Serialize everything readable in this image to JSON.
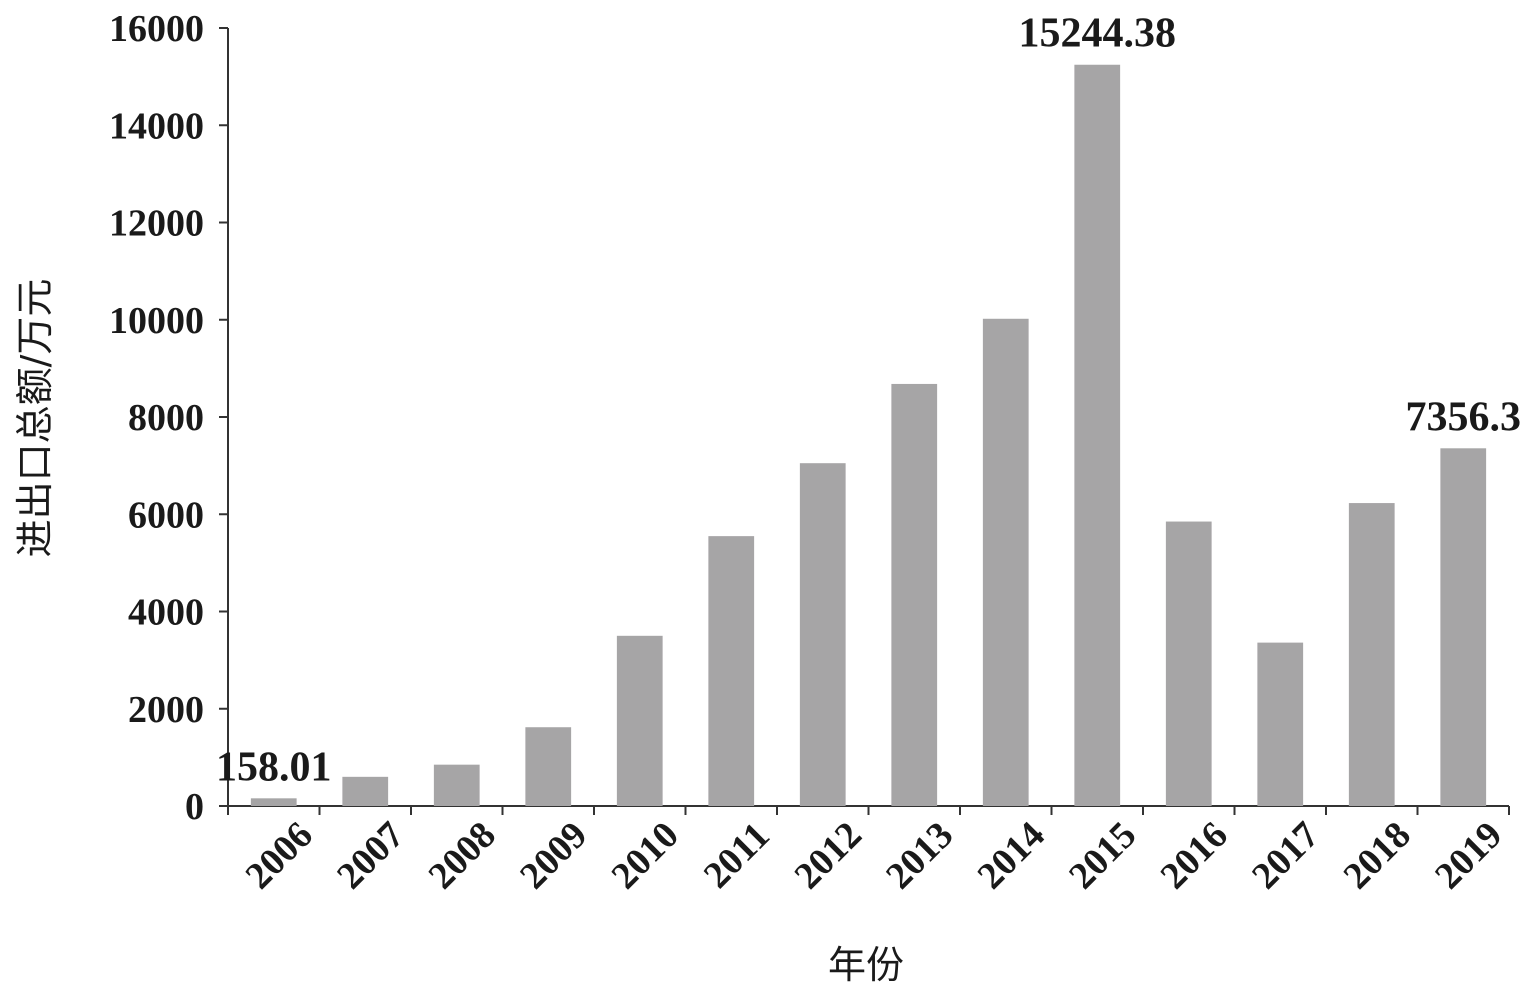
{
  "chart_data": {
    "type": "bar",
    "xlabel": "年份",
    "ylabel": "进出口总额/万元",
    "ylim": [
      0,
      16000
    ],
    "yticks": [
      "0",
      "2000",
      "4000",
      "6000",
      "8000",
      "10000",
      "12000",
      "14000",
      "16000"
    ],
    "categories": [
      "2006",
      "2007",
      "2008",
      "2009",
      "2010",
      "2011",
      "2012",
      "2013",
      "2014",
      "2015",
      "2016",
      "2017",
      "2018",
      "2019"
    ],
    "values": [
      158.01,
      600,
      850,
      1620,
      3500,
      5550,
      7050,
      8680,
      10020,
      15244.38,
      5850,
      3360,
      6230,
      7356.3
    ],
    "data_labels": [
      {
        "category": "2006",
        "text": "158.01"
      },
      {
        "category": "2015",
        "text": "15244.38"
      },
      {
        "category": "2019",
        "text": "7356.3"
      }
    ],
    "bar_color": "#a6a5a6",
    "grid": false,
    "legend": "none"
  }
}
